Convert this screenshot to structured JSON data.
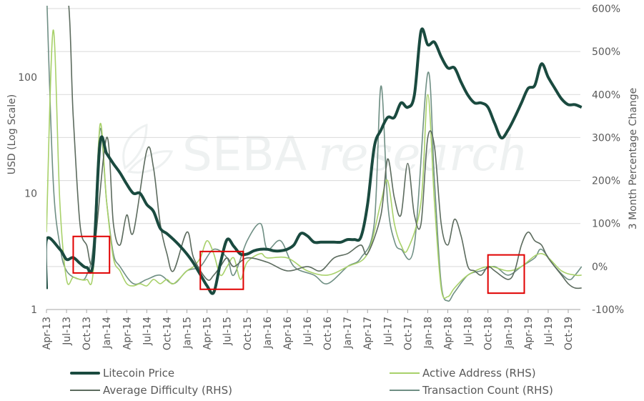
{
  "chart_data": {
    "type": "line",
    "title": "",
    "ylabel_left": "USD (Log Scale)",
    "ylabel_right": "3 Month Percentage Change",
    "ylim_left": [
      1,
      1000
    ],
    "left_ticks": [
      "1",
      "10",
      "100"
    ],
    "ylim_right": [
      -100,
      600
    ],
    "right_ticks": [
      "-100%",
      "0%",
      "100%",
      "200%",
      "300%",
      "400%",
      "500%",
      "600%"
    ],
    "x_ticks": [
      "Apr-13",
      "Jul-13",
      "Oct-13",
      "Jan-14",
      "Apr-14",
      "Jul-14",
      "Oct-14",
      "Jan-15",
      "Apr-15",
      "Jul-15",
      "Oct-15",
      "Jan-16",
      "Apr-16",
      "Jul-16",
      "Oct-16",
      "Jan-17",
      "Apr-17",
      "Jul-17",
      "Oct-17",
      "Jan-18",
      "Apr-18",
      "Jul-18",
      "Oct-18",
      "Jan-19",
      "Apr-19",
      "Jul-19",
      "Oct-19"
    ],
    "grid": "horizontal",
    "legend_position": "bottom",
    "watermark": {
      "brand": "SEBA",
      "suffix": "research"
    },
    "series": [
      {
        "name": "Litecoin Price",
        "axis": "left",
        "color": "#1a4a3f",
        "width": 4,
        "points": [
          [
            "2013-04",
            1.5
          ],
          [
            "2013-04",
            4
          ],
          [
            "2013-06",
            3.3
          ],
          [
            "2013-07",
            2.7
          ],
          [
            "2013-08",
            2.8
          ],
          [
            "2013-09",
            2.5
          ],
          [
            "2013-10",
            2.3
          ],
          [
            "2013-11",
            2.6
          ],
          [
            "2013-12",
            27
          ],
          [
            "2014-01",
            22
          ],
          [
            "2014-02",
            18
          ],
          [
            "2014-03",
            15
          ],
          [
            "2014-04",
            12
          ],
          [
            "2014-05",
            10
          ],
          [
            "2014-06",
            10
          ],
          [
            "2014-07",
            8
          ],
          [
            "2014-08",
            7
          ],
          [
            "2014-09",
            5
          ],
          [
            "2014-10",
            4.5
          ],
          [
            "2014-11",
            4
          ],
          [
            "2014-12",
            3.5
          ],
          [
            "2015-01",
            3
          ],
          [
            "2015-02",
            2.5
          ],
          [
            "2015-03",
            2
          ],
          [
            "2015-04",
            1.6
          ],
          [
            "2015-05",
            1.4
          ],
          [
            "2015-06",
            2.5
          ],
          [
            "2015-07",
            4
          ],
          [
            "2015-08",
            3.5
          ],
          [
            "2015-09",
            3
          ],
          [
            "2015-10",
            3
          ],
          [
            "2015-11",
            3.2
          ],
          [
            "2015-12",
            3.3
          ],
          [
            "2016-01",
            3.3
          ],
          [
            "2016-02",
            3.2
          ],
          [
            "2016-03",
            3.2
          ],
          [
            "2016-04",
            3.3
          ],
          [
            "2016-05",
            3.6
          ],
          [
            "2016-06",
            4.5
          ],
          [
            "2016-07",
            4.3
          ],
          [
            "2016-08",
            3.8
          ],
          [
            "2016-09",
            3.8
          ],
          [
            "2016-10",
            3.8
          ],
          [
            "2016-11",
            3.8
          ],
          [
            "2016-12",
            3.8
          ],
          [
            "2017-01",
            4
          ],
          [
            "2017-02",
            4
          ],
          [
            "2017-03",
            4.2
          ],
          [
            "2017-04",
            8
          ],
          [
            "2017-05",
            25
          ],
          [
            "2017-06",
            35
          ],
          [
            "2017-07",
            45
          ],
          [
            "2017-08",
            45
          ],
          [
            "2017-09",
            60
          ],
          [
            "2017-10",
            55
          ],
          [
            "2017-11",
            70
          ],
          [
            "2017-12",
            250
          ],
          [
            "2018-01",
            190
          ],
          [
            "2018-02",
            200
          ],
          [
            "2018-03",
            150
          ],
          [
            "2018-04",
            120
          ],
          [
            "2018-05",
            120
          ],
          [
            "2018-06",
            90
          ],
          [
            "2018-07",
            70
          ],
          [
            "2018-08",
            60
          ],
          [
            "2018-09",
            60
          ],
          [
            "2018-10",
            55
          ],
          [
            "2018-11",
            40
          ],
          [
            "2018-12",
            30
          ],
          [
            "2019-01",
            35
          ],
          [
            "2019-02",
            45
          ],
          [
            "2019-03",
            60
          ],
          [
            "2019-04",
            80
          ],
          [
            "2019-05",
            85
          ],
          [
            "2019-06",
            130
          ],
          [
            "2019-07",
            100
          ],
          [
            "2019-08",
            80
          ],
          [
            "2019-09",
            65
          ],
          [
            "2019-10",
            58
          ],
          [
            "2019-11",
            58
          ],
          [
            "2019-12",
            55
          ]
        ]
      },
      {
        "name": "Active Address (RHS)",
        "axis": "right",
        "color": "#a8d16a",
        "width": 1.6,
        "points": [
          [
            "2013-04",
            80
          ],
          [
            "2013-05",
            550
          ],
          [
            "2013-06",
            150
          ],
          [
            "2013-07",
            -30
          ],
          [
            "2013-08",
            -25
          ],
          [
            "2013-09",
            -30
          ],
          [
            "2013-10",
            -30
          ],
          [
            "2013-11",
            -10
          ],
          [
            "2013-12",
            330
          ],
          [
            "2014-01",
            150
          ],
          [
            "2014-02",
            20
          ],
          [
            "2014-03",
            -10
          ],
          [
            "2014-04",
            -40
          ],
          [
            "2014-05",
            -45
          ],
          [
            "2014-06",
            -40
          ],
          [
            "2014-07",
            -45
          ],
          [
            "2014-08",
            -30
          ],
          [
            "2014-09",
            -40
          ],
          [
            "2014-10",
            -30
          ],
          [
            "2014-11",
            -40
          ],
          [
            "2015-01",
            -10
          ],
          [
            "2015-02",
            0
          ],
          [
            "2015-03",
            20
          ],
          [
            "2015-04",
            60
          ],
          [
            "2015-05",
            30
          ],
          [
            "2015-06",
            -20
          ],
          [
            "2015-07",
            0
          ],
          [
            "2015-08",
            20
          ],
          [
            "2015-09",
            -30
          ],
          [
            "2015-10",
            10
          ],
          [
            "2015-12",
            30
          ],
          [
            "2016-01",
            20
          ],
          [
            "2016-04",
            20
          ],
          [
            "2016-07",
            -10
          ],
          [
            "2016-10",
            -20
          ],
          [
            "2017-01",
            0
          ],
          [
            "2017-04",
            30
          ],
          [
            "2017-06",
            150
          ],
          [
            "2017-07",
            200
          ],
          [
            "2017-08",
            100
          ],
          [
            "2017-09",
            50
          ],
          [
            "2017-10",
            40
          ],
          [
            "2017-12",
            150
          ],
          [
            "2018-01",
            400
          ],
          [
            "2018-02",
            150
          ],
          [
            "2018-03",
            -50
          ],
          [
            "2018-04",
            -70
          ],
          [
            "2018-05",
            -50
          ],
          [
            "2018-07",
            -20
          ],
          [
            "2018-10",
            0
          ],
          [
            "2019-01",
            -10
          ],
          [
            "2019-03",
            0
          ],
          [
            "2019-06",
            30
          ],
          [
            "2019-09",
            -10
          ],
          [
            "2019-11",
            -20
          ],
          [
            "2019-12",
            -20
          ]
        ]
      },
      {
        "name": "Average Difficulty (RHS)",
        "axis": "right",
        "color": "#5c6b5e",
        "width": 1.6,
        "points": [
          [
            "2013-04",
            650
          ],
          [
            "2013-07",
            650
          ],
          [
            "2013-08",
            350
          ],
          [
            "2013-09",
            100
          ],
          [
            "2013-10",
            50
          ],
          [
            "2013-11",
            20
          ],
          [
            "2014-01",
            300
          ],
          [
            "2014-02",
            100
          ],
          [
            "2014-03",
            50
          ],
          [
            "2014-04",
            120
          ],
          [
            "2014-05",
            80
          ],
          [
            "2014-07",
            270
          ],
          [
            "2014-08",
            230
          ],
          [
            "2014-09",
            100
          ],
          [
            "2014-10",
            30
          ],
          [
            "2014-11",
            -10
          ],
          [
            "2015-01",
            80
          ],
          [
            "2015-02",
            20
          ],
          [
            "2015-04",
            -30
          ],
          [
            "2015-05",
            -20
          ],
          [
            "2015-06",
            0
          ],
          [
            "2015-07",
            20
          ],
          [
            "2015-08",
            0
          ],
          [
            "2015-10",
            20
          ],
          [
            "2016-01",
            10
          ],
          [
            "2016-04",
            -10
          ],
          [
            "2016-07",
            0
          ],
          [
            "2016-09",
            -10
          ],
          [
            "2016-11",
            20
          ],
          [
            "2017-01",
            30
          ],
          [
            "2017-03",
            50
          ],
          [
            "2017-04",
            30
          ],
          [
            "2017-06",
            120
          ],
          [
            "2017-07",
            250
          ],
          [
            "2017-08",
            160
          ],
          [
            "2017-09",
            120
          ],
          [
            "2017-10",
            240
          ],
          [
            "2017-11",
            120
          ],
          [
            "2017-12",
            100
          ],
          [
            "2018-01",
            300
          ],
          [
            "2018-02",
            280
          ],
          [
            "2018-03",
            100
          ],
          [
            "2018-04",
            50
          ],
          [
            "2018-05",
            110
          ],
          [
            "2018-06",
            70
          ],
          [
            "2018-07",
            0
          ],
          [
            "2018-08",
            -10
          ],
          [
            "2018-09",
            -20
          ],
          [
            "2018-10",
            0
          ],
          [
            "2018-11",
            -10
          ],
          [
            "2019-01",
            -30
          ],
          [
            "2019-02",
            -10
          ],
          [
            "2019-03",
            50
          ],
          [
            "2019-04",
            80
          ],
          [
            "2019-05",
            60
          ],
          [
            "2019-06",
            50
          ],
          [
            "2019-07",
            20
          ],
          [
            "2019-09",
            -20
          ],
          [
            "2019-10",
            -40
          ],
          [
            "2019-11",
            -50
          ],
          [
            "2019-12",
            -50
          ]
        ]
      },
      {
        "name": "Transaction Count (RHS)",
        "axis": "right",
        "color": "#6f8f84",
        "width": 1.6,
        "points": [
          [
            "2013-04",
            650
          ],
          [
            "2013-05",
            200
          ],
          [
            "2013-06",
            50
          ],
          [
            "2013-07",
            -10
          ],
          [
            "2013-09",
            -30
          ],
          [
            "2013-10",
            -20
          ],
          [
            "2013-11",
            50
          ],
          [
            "2013-12",
            320
          ],
          [
            "2014-01",
            150
          ],
          [
            "2014-02",
            30
          ],
          [
            "2014-03",
            0
          ],
          [
            "2014-05",
            -40
          ],
          [
            "2014-07",
            -30
          ],
          [
            "2014-09",
            -20
          ],
          [
            "2014-11",
            -40
          ],
          [
            "2015-01",
            -10
          ],
          [
            "2015-03",
            0
          ],
          [
            "2015-05",
            40
          ],
          [
            "2015-07",
            20
          ],
          [
            "2015-08",
            -20
          ],
          [
            "2015-10",
            60
          ],
          [
            "2015-12",
            100
          ],
          [
            "2016-01",
            40
          ],
          [
            "2016-03",
            60
          ],
          [
            "2016-05",
            0
          ],
          [
            "2016-08",
            -20
          ],
          [
            "2016-10",
            -40
          ],
          [
            "2017-01",
            0
          ],
          [
            "2017-03",
            20
          ],
          [
            "2017-05",
            100
          ],
          [
            "2017-06",
            420
          ],
          [
            "2017-07",
            150
          ],
          [
            "2017-08",
            60
          ],
          [
            "2017-09",
            40
          ],
          [
            "2017-11",
            50
          ],
          [
            "2018-01",
            450
          ],
          [
            "2018-02",
            200
          ],
          [
            "2018-03",
            -40
          ],
          [
            "2018-04",
            -80
          ],
          [
            "2018-05",
            -60
          ],
          [
            "2018-07",
            -20
          ],
          [
            "2018-09",
            -10
          ],
          [
            "2018-11",
            0
          ],
          [
            "2019-01",
            -20
          ],
          [
            "2019-03",
            0
          ],
          [
            "2019-05",
            20
          ],
          [
            "2019-06",
            40
          ],
          [
            "2019-08",
            0
          ],
          [
            "2019-10",
            -30
          ],
          [
            "2019-11",
            -20
          ],
          [
            "2019-12",
            0
          ]
        ]
      }
    ],
    "annotations": [
      {
        "type": "box",
        "color": "#e00000",
        "x": [
          "2013-08",
          "2014-01"
        ],
        "y_right": [
          -15,
          70
        ]
      },
      {
        "type": "box",
        "color": "#e00000",
        "x": [
          "2015-03",
          "2015-09"
        ],
        "y_right": [
          -53,
          35
        ]
      },
      {
        "type": "box",
        "color": "#e00000",
        "x": [
          "2018-10",
          "2019-03"
        ],
        "y_right": [
          -62,
          27
        ]
      }
    ]
  }
}
